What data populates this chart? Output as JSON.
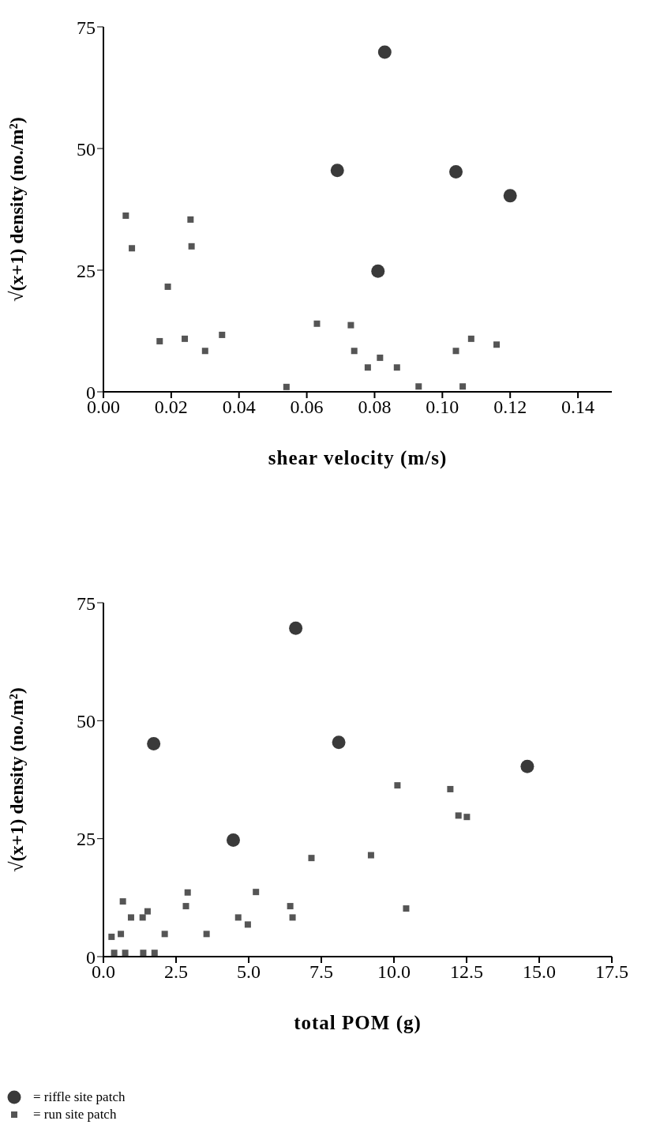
{
  "chart_data": [
    {
      "type": "scatter",
      "xlabel": "shear velocity (m/s)",
      "ylabel": "√(x+1) density (no./m²)",
      "xlim": [
        0,
        0.15
      ],
      "ylim": [
        0,
        75
      ],
      "xticks": [
        {
          "value": 0,
          "label": "0.00"
        },
        {
          "value": 0.02,
          "label": "0.02"
        },
        {
          "value": 0.04,
          "label": "0.04"
        },
        {
          "value": 0.06,
          "label": "0.06"
        },
        {
          "value": 0.08,
          "label": "0.08"
        },
        {
          "value": 0.1,
          "label": "0.10"
        },
        {
          "value": 0.12,
          "label": "0.12"
        },
        {
          "value": 0.14,
          "label": "0.14"
        }
      ],
      "yticks": [
        0,
        25,
        50,
        75
      ],
      "grid": false,
      "legend": false,
      "series": [
        {
          "color": "#3a3a3a",
          "marker": "circle",
          "x": [
            0.083,
            0.069,
            0.104,
            0.12,
            0.081
          ],
          "values": [
            69.8,
            45.5,
            45.2,
            40.3,
            24.8
          ]
        },
        {
          "color": "#555555",
          "marker": "square",
          "x": [
            0.0066,
            0.0084,
            0.019,
            0.0166,
            0.024,
            0.0257,
            0.026,
            0.03,
            0.035,
            0.054,
            0.063,
            0.073,
            0.074,
            0.078,
            0.0816,
            0.0866,
            0.093,
            0.104,
            0.106,
            0.1085,
            0.116
          ],
          "values": [
            36.2,
            29.5,
            21.6,
            10.4,
            10.9,
            35.4,
            29.9,
            8.4,
            11.7,
            1,
            14,
            13.7,
            8.4,
            5,
            7,
            5,
            1.1,
            8.4,
            1.1,
            10.9,
            9.7
          ]
        }
      ]
    },
    {
      "type": "scatter",
      "xlabel": "total POM (g)",
      "ylabel": "√(x+1) density (no./m²)",
      "xlim": [
        0,
        17.5
      ],
      "ylim": [
        0,
        75
      ],
      "xticks": [
        {
          "value": 0,
          "label": "0.0"
        },
        {
          "value": 2.5,
          "label": "2.5"
        },
        {
          "value": 5,
          "label": "5.0"
        },
        {
          "value": 7.5,
          "label": "7.5"
        },
        {
          "value": 10,
          "label": "10.0"
        },
        {
          "value": 12.5,
          "label": "12.5"
        },
        {
          "value": 15,
          "label": "15.0"
        },
        {
          "value": 17.5,
          "label": "17.5"
        }
      ],
      "yticks": [
        0,
        25,
        50,
        75
      ],
      "grid": false,
      "legend": "bottom left",
      "series": [
        {
          "name": "= riffle site patch",
          "color": "#3a3a3a",
          "marker": "circle",
          "x": [
            1.73,
            4.47,
            6.62,
            8.1,
            14.59
          ],
          "values": [
            45.1,
            24.7,
            69.6,
            45.4,
            40.3
          ]
        },
        {
          "name": "= run site patch",
          "color": "#555555",
          "marker": "square",
          "x": [
            0.28,
            0.37,
            0.6,
            0.67,
            0.75,
            0.95,
            1.35,
            1.37,
            1.52,
            1.76,
            2.11,
            2.84,
            2.9,
            3.55,
            4.64,
            4.97,
            5.25,
            6.43,
            6.51,
            7.16,
            9.21,
            10.12,
            10.42,
            11.94,
            12.22,
            12.51
          ],
          "values": [
            4.2,
            0.8,
            4.8,
            11.7,
            0.8,
            8.3,
            8.3,
            0.8,
            9.6,
            0.8,
            4.8,
            10.7,
            13.6,
            4.8,
            8.3,
            6.8,
            13.7,
            10.7,
            8.3,
            20.9,
            21.5,
            36.3,
            10.2,
            35.5,
            29.9,
            29.6
          ]
        }
      ]
    }
  ]
}
